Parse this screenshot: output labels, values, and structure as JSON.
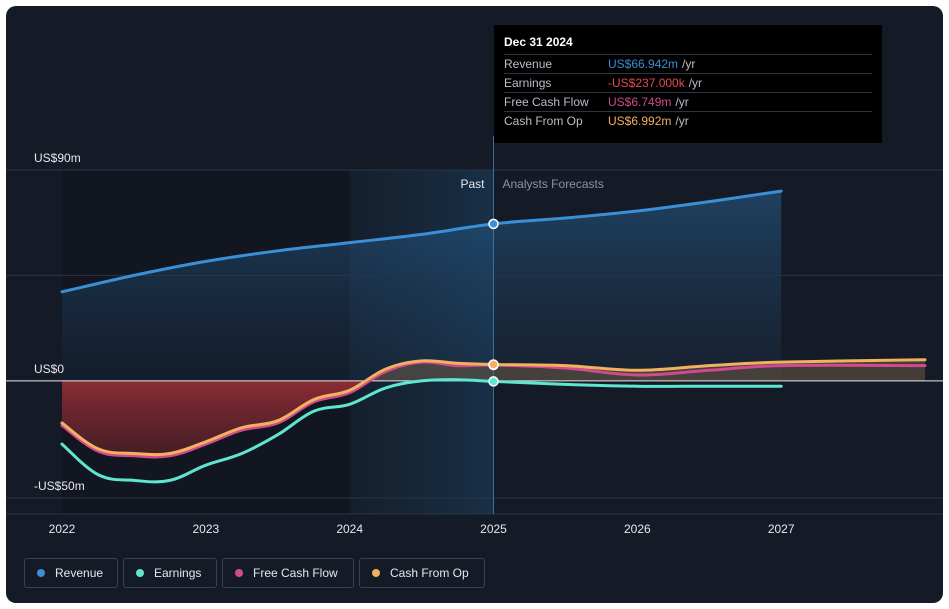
{
  "chart_data": {
    "type": "line",
    "x_range": [
      2022,
      2028
    ],
    "ylim": [
      -50,
      90
    ],
    "y_tick_labels": [
      {
        "value": 90,
        "label": "US$90m"
      },
      {
        "value": 0,
        "label": "US$0"
      },
      {
        "value": -50,
        "label": "-US$50m"
      }
    ],
    "x_tick_labels": [
      "2022",
      "2023",
      "2024",
      "2025",
      "2026",
      "2027"
    ],
    "x_tick_values": [
      2022,
      2023,
      2024,
      2025,
      2026,
      2027
    ],
    "divider_x": 2025,
    "past_label": "Past",
    "forecast_label": "Analysts Forecasts",
    "highlight_start_x": 2024,
    "grid": true,
    "series": [
      {
        "name": "Revenue",
        "color": "#3a8fd6",
        "x": [
          2022.0,
          2022.5,
          2023.0,
          2023.5,
          2024.0,
          2024.5,
          2025.0,
          2025.5,
          2026.0,
          2026.5,
          2027.0
        ],
        "values": [
          38,
          45,
          51,
          55.5,
          59,
          62.5,
          67,
          69.5,
          72.5,
          76.5,
          81
        ]
      },
      {
        "name": "Earnings",
        "color": "#5ee6d0",
        "x": [
          2022.0,
          2022.25,
          2022.5,
          2022.75,
          2023.0,
          2023.25,
          2023.5,
          2023.75,
          2024.0,
          2024.25,
          2024.5,
          2024.75,
          2025.0,
          2025.5,
          2026.0,
          2026.5,
          2027.0
        ],
        "values": [
          -27,
          -40,
          -42.5,
          -42.5,
          -36,
          -31,
          -23,
          -13,
          -10,
          -3,
          0,
          0.5,
          -0.24,
          -1.5,
          -2.3,
          -2.3,
          -2.3
        ]
      },
      {
        "name": "Free Cash Flow",
        "color": "#d24a8e",
        "x": [
          2022.0,
          2022.25,
          2022.5,
          2022.75,
          2023.0,
          2023.25,
          2023.5,
          2023.75,
          2024.0,
          2024.25,
          2024.5,
          2024.75,
          2025.0,
          2025.5,
          2026.0,
          2026.5,
          2027.0,
          2028.0
        ],
        "values": [
          -19,
          -30,
          -32,
          -32,
          -27,
          -21,
          -18,
          -9,
          -5,
          4,
          8,
          6.5,
          6.749,
          5.5,
          2.5,
          4.5,
          6.5,
          6.5
        ]
      },
      {
        "name": "Cash From Op",
        "color": "#f2b15f",
        "x": [
          2022.0,
          2022.25,
          2022.5,
          2022.75,
          2023.0,
          2023.25,
          2023.5,
          2023.75,
          2024.0,
          2024.25,
          2024.5,
          2024.75,
          2025.0,
          2025.5,
          2026.0,
          2026.5,
          2027.0,
          2028.0
        ],
        "values": [
          -18,
          -29,
          -31,
          -31,
          -26,
          -20,
          -17,
          -8,
          -4,
          5,
          8.5,
          7.5,
          6.992,
          6.5,
          4.5,
          6.5,
          8,
          9
        ]
      }
    ]
  },
  "tooltip": {
    "date": "Dec 31 2024",
    "rows": [
      {
        "name": "Revenue",
        "value": "US$66.942m",
        "unit": "/yr",
        "color": "#3a8fd6"
      },
      {
        "name": "Earnings",
        "value": "-US$237.000k",
        "unit": "/yr",
        "color": "#e8484f"
      },
      {
        "name": "Free Cash Flow",
        "value": "US$6.749m",
        "unit": "/yr",
        "color": "#d24a8e"
      },
      {
        "name": "Cash From Op",
        "value": "US$6.992m",
        "unit": "/yr",
        "color": "#f2b15f"
      }
    ]
  },
  "legend": [
    {
      "label": "Revenue",
      "color": "#3a8fd6"
    },
    {
      "label": "Earnings",
      "color": "#5ee6d0"
    },
    {
      "label": "Free Cash Flow",
      "color": "#d24a8e"
    },
    {
      "label": "Cash From Op",
      "color": "#f2b15f"
    }
  ],
  "colors": {
    "background": "#151b26",
    "negative_fill": "#a8323a"
  }
}
